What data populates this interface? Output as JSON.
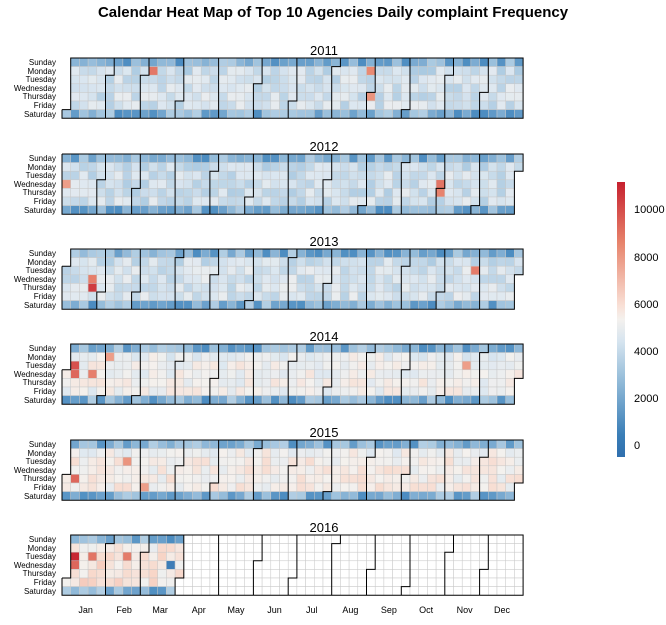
{
  "chart_data": {
    "type": "heatmap",
    "title": "Calendar Heat Map of Top 10 Agencies Daily complaint Frequency",
    "years": [
      "2011",
      "2012",
      "2013",
      "2014",
      "2015",
      "2016"
    ],
    "weekdays": [
      "Sunday",
      "Monday",
      "Tuesday",
      "Wednesday",
      "Thursday",
      "Friday",
      "Saturday"
    ],
    "months": [
      "Jan",
      "Feb",
      "Mar",
      "Apr",
      "May",
      "Jun",
      "Jul",
      "Aug",
      "Sep",
      "Oct",
      "Nov",
      "Dec"
    ],
    "legend": {
      "ticks": [
        "10000",
        "8000",
        "6000",
        "4000",
        "2000",
        "0"
      ],
      "range": [
        0,
        11000
      ],
      "colors": [
        "#2f6fae",
        "#94bcd9",
        "#f4f1ee",
        "#e7836b",
        "#c6202e"
      ]
    },
    "data_end": "2016-03-31",
    "value_model": {
      "weekday_level": {
        "2011": 4200,
        "2012": 4100,
        "2013": 4300,
        "2014": 5200,
        "2015": 5500,
        "2016": 5900
      },
      "weekend_level": 2700,
      "hotspots": [
        {
          "date": "2011-03-07",
          "value": 8500
        },
        {
          "date": "2011-08-29",
          "value": 8000
        },
        {
          "date": "2011-09-01",
          "value": 7800
        },
        {
          "date": "2012-01-04",
          "value": 7600
        },
        {
          "date": "2012-10-31",
          "value": 8600
        },
        {
          "date": "2012-11-01",
          "value": 8200
        },
        {
          "date": "2013-01-24",
          "value": 10200
        },
        {
          "date": "2013-01-23",
          "value": 8300
        },
        {
          "date": "2013-11-26",
          "value": 8400
        },
        {
          "date": "2014-01-07",
          "value": 9600
        },
        {
          "date": "2014-01-08",
          "value": 9000
        },
        {
          "date": "2014-01-22",
          "value": 8300
        },
        {
          "date": "2014-02-03",
          "value": 7600
        },
        {
          "date": "2014-11-18",
          "value": 7600
        },
        {
          "date": "2015-01-08",
          "value": 9000
        },
        {
          "date": "2015-02-17",
          "value": 7800
        },
        {
          "date": "2015-03-06",
          "value": 7600
        },
        {
          "date": "2016-01-05",
          "value": 10800
        },
        {
          "date": "2016-01-06",
          "value": 9000
        },
        {
          "date": "2016-01-19",
          "value": 8600
        },
        {
          "date": "2016-02-16",
          "value": 8400
        },
        {
          "date": "2016-03-23",
          "value": 900
        }
      ]
    }
  }
}
